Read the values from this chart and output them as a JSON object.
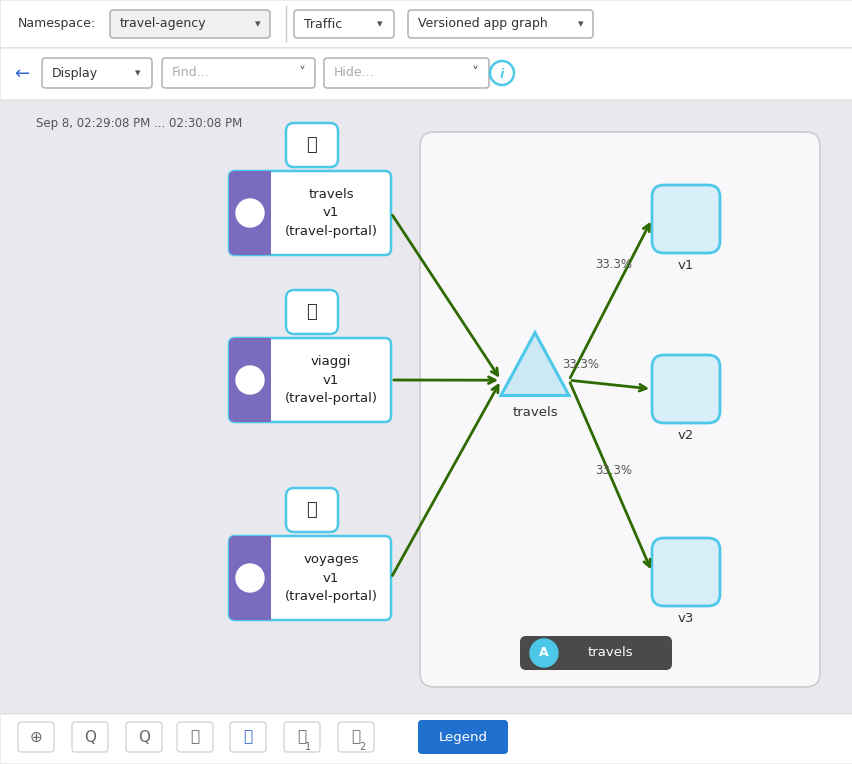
{
  "bg_color": "#e8e8ee",
  "header_bg": "#ffffff",
  "canvas_bg": "#eaeaee",
  "title_text": "Sep 8, 02:29:08 PM ... 02:30:08 PM",
  "namespace_label": "Namespace:",
  "namespace_value": "travel-agency",
  "traffic_label": "Traffic",
  "graph_label": "Versioned app graph",
  "display_label": "Display",
  "find_label": "Find...",
  "hide_label": "Hide...",
  "left_nodes": [
    {
      "label": "travels\nv1\n(travel-portal)"
    },
    {
      "label": "viaggi\nv1\n(travel-portal)"
    },
    {
      "label": "voyages\nv1\n(travel-portal)"
    }
  ],
  "center_label": "travels",
  "right_labels": [
    "v1",
    "v2",
    "v3"
  ],
  "percentages": [
    "33.3%",
    "33.3%",
    "33.3%"
  ],
  "arrow_color": "#2d6a00",
  "node_border_color": "#4ec8e8",
  "left_node_purple": "#7b6bbf",
  "right_box_fill": "#d8eef8",
  "right_box_border": "#4ec8e8",
  "triangle_fill": "#cce8f4",
  "triangle_border": "#4ec8e8",
  "legend_bg": "#4a4a4a",
  "legend_text": "travels",
  "legend_btn_color": "#2070d0",
  "header_border": "#dddddd",
  "panel_bg": "#f8f8fa"
}
